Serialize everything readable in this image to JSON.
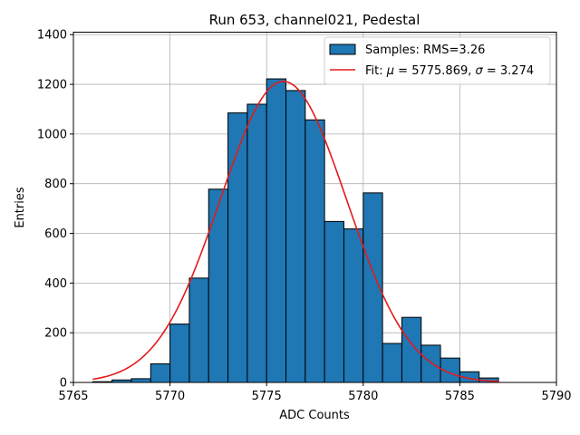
{
  "chart_data": {
    "type": "bar",
    "title": "Run 653, channel021, Pedestal",
    "xlabel": "ADC Counts",
    "ylabel": "Entries",
    "xlim": [
      5765,
      5790
    ],
    "ylim": [
      0,
      1410
    ],
    "xticks": [
      5765,
      5770,
      5775,
      5780,
      5785,
      5790
    ],
    "yticks": [
      0,
      200,
      400,
      600,
      800,
      1000,
      1200,
      1400
    ],
    "grid": true,
    "legend_position": "top-right",
    "bar_color": "#1f77b4",
    "fit_color": "#e31a1c",
    "bin_width": 1,
    "bin_left_edges": [
      5766,
      5767,
      5768,
      5769,
      5770,
      5771,
      5772,
      5773,
      5774,
      5775,
      5776,
      5777,
      5778,
      5779,
      5780,
      5781,
      5782,
      5783,
      5784,
      5785,
      5786
    ],
    "counts": [
      3,
      10,
      15,
      75,
      235,
      420,
      778,
      1085,
      1120,
      1222,
      1175,
      1057,
      648,
      618,
      763,
      157,
      262,
      150,
      98,
      43,
      18
    ],
    "fit": {
      "mu": 5775.869,
      "sigma": 3.274,
      "amplitude": 1212,
      "x_range": [
        5766,
        5787
      ]
    },
    "series": [
      {
        "name": "Samples: RMS=3.26",
        "kind": "histogram"
      },
      {
        "name_prefix": "Fit: ",
        "name_mu": "μ",
        "name_mid": " = 5775.869, ",
        "name_sigma": "σ",
        "name_suffix": " = 3.274",
        "kind": "gaussian-fit"
      }
    ]
  }
}
